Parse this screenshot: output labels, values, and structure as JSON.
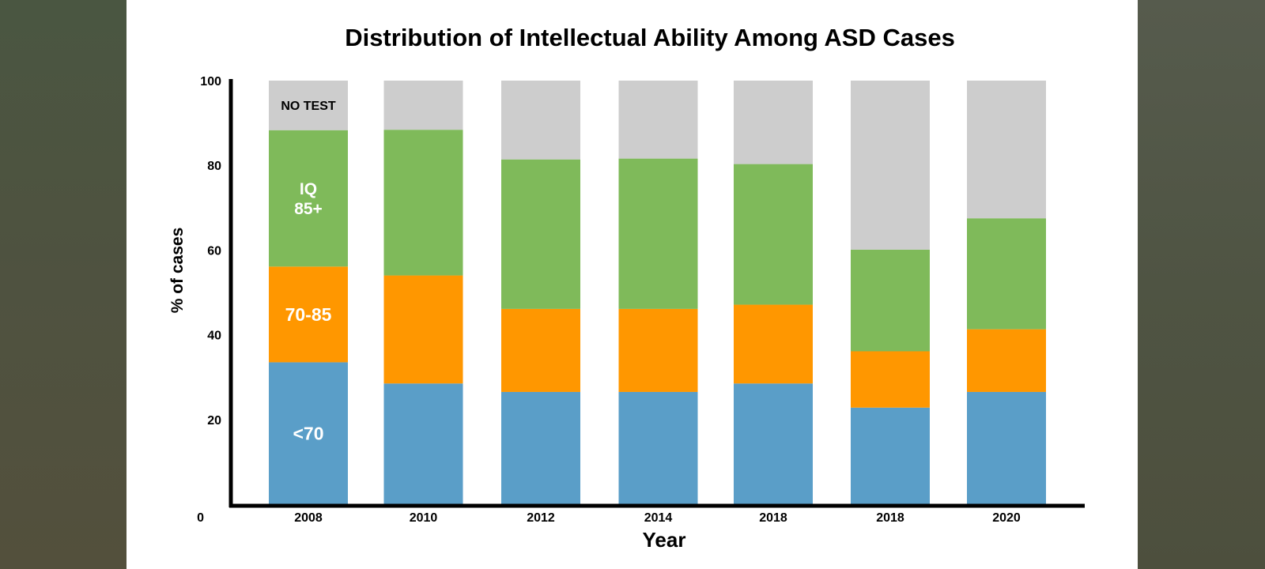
{
  "chart_data": {
    "type": "bar",
    "stacked": true,
    "title": "Distribution of Intellectual Ability Among ASD Cases",
    "xlabel": "Year",
    "ylabel": "% of cases",
    "ylim": [
      0,
      100
    ],
    "yticks": [
      0,
      20,
      40,
      60,
      80,
      100
    ],
    "categories": [
      "2008",
      "2010",
      "2012",
      "2014",
      "2018",
      "2018",
      "2020"
    ],
    "series": [
      {
        "name": "<70",
        "color": "#5a9ec8",
        "values": [
          33.5,
          28.5,
          26.5,
          26.5,
          28.5,
          22.8,
          26.5
        ]
      },
      {
        "name": "70-85",
        "color": "#ff9700",
        "values": [
          22.6,
          25.5,
          19.6,
          19.6,
          18.6,
          13.3,
          14.8
        ]
      },
      {
        "name": "IQ 85+",
        "color": "#7fba5a",
        "values": [
          32.2,
          34.4,
          35.3,
          35.5,
          33.2,
          24.0,
          26.2
        ]
      },
      {
        "name": "NO TEST",
        "color": "#cdcdcd",
        "values": [
          11.7,
          11.6,
          18.6,
          18.4,
          19.7,
          39.9,
          32.5
        ]
      }
    ],
    "segment_labels": [
      {
        "series": 0,
        "category": 0,
        "lines": [
          "<70"
        ],
        "color": "#ffffff"
      },
      {
        "series": 1,
        "category": 0,
        "lines": [
          "70-85"
        ],
        "color": "#ffffff"
      },
      {
        "series": 2,
        "category": 0,
        "lines": [
          "IQ",
          "85+"
        ],
        "color": "#ffffff"
      },
      {
        "series": 3,
        "category": 0,
        "lines": [
          "NO TEST"
        ],
        "color": "#000000"
      }
    ]
  }
}
